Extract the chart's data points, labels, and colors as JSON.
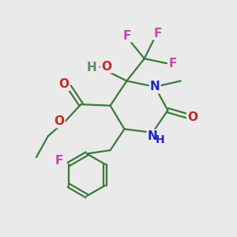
{
  "bg_color": "#eaeaea",
  "bond_color": "#3a7a3a",
  "bond_lw": 1.6,
  "atom_colors": {
    "N": "#2222cc",
    "O": "#cc2222",
    "F": "#cc44aa",
    "H": "#668866"
  },
  "font_size": 11
}
